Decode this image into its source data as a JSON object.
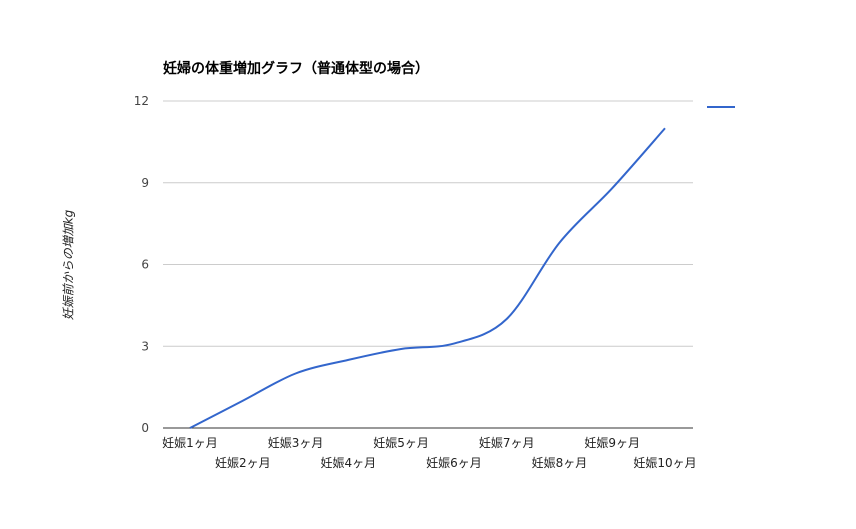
{
  "chart_data": {
    "type": "line",
    "title": "妊婦の体重増加グラフ（普通体型の場合）",
    "xlabel": "",
    "ylabel": "妊娠前からの増加kg",
    "categories": [
      "妊娠1ヶ月",
      "妊娠2ヶ月",
      "妊娠3ヶ月",
      "妊娠4ヶ月",
      "妊娠5ヶ月",
      "妊娠6ヶ月",
      "妊娠7ヶ月",
      "妊娠8ヶ月",
      "妊娠9ヶ月",
      "妊娠10ヶ月"
    ],
    "series": [
      {
        "name": "",
        "values": [
          0,
          1,
          2,
          2.5,
          2.9,
          3.1,
          4,
          6.8,
          8.8,
          11
        ],
        "color": "#3366cc"
      }
    ],
    "ylim": [
      0,
      12
    ],
    "yticks": [
      0,
      3,
      6,
      9,
      12
    ],
    "grid": true,
    "legend": "right"
  }
}
